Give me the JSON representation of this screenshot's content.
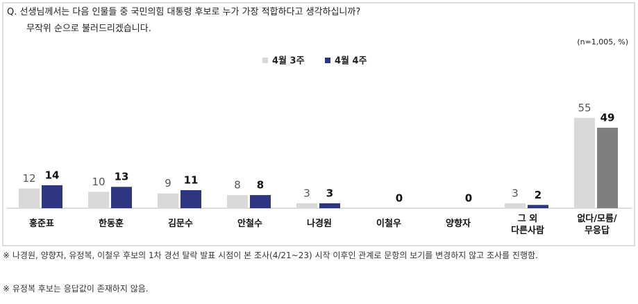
{
  "chart_data": {
    "type": "bar",
    "title": "Q. 선생님께서는 다음 인물들 중 국민의힘 대통령 후보로 누가 가장 적합하다고 생각하십니까?",
    "subtitle": "무작위 순으로 불러드리겠습니다.",
    "sample_note": "(n=1,005, %)",
    "categories": [
      "홍준표",
      "한동훈",
      "김문수",
      "안철수",
      "나경원",
      "이철우",
      "양향자",
      "그 외\n다른사람",
      "없다/모름/\n무응답"
    ],
    "series": [
      {
        "name": "4월 3주",
        "color": "#d9d9d9",
        "values": [
          12,
          10,
          9,
          8,
          3,
          null,
          null,
          3,
          55
        ]
      },
      {
        "name": "4월 4주",
        "color": "#2e3583",
        "colors": [
          "#2e3583",
          "#2e3583",
          "#2e3583",
          "#2e3583",
          "#2e3583",
          "#2e3583",
          "#2e3583",
          "#2e3583",
          "#7f7f7f"
        ],
        "values": [
          14,
          13,
          11,
          8,
          3,
          0,
          0,
          2,
          49
        ]
      }
    ],
    "ylim": [
      0,
      60
    ],
    "legend": "top",
    "notes": [
      "※ 나경원, 양향자, 유정복, 이철우 후보의 1차 경선 탈락 발표 시점이 본 조사(4/21~23) 시작 이후인 관계로 문항의 보기를 변경하지 않고 조사를 진행함.",
      "※ 유정복 후보는 응답값이 존재하지 않음."
    ]
  }
}
